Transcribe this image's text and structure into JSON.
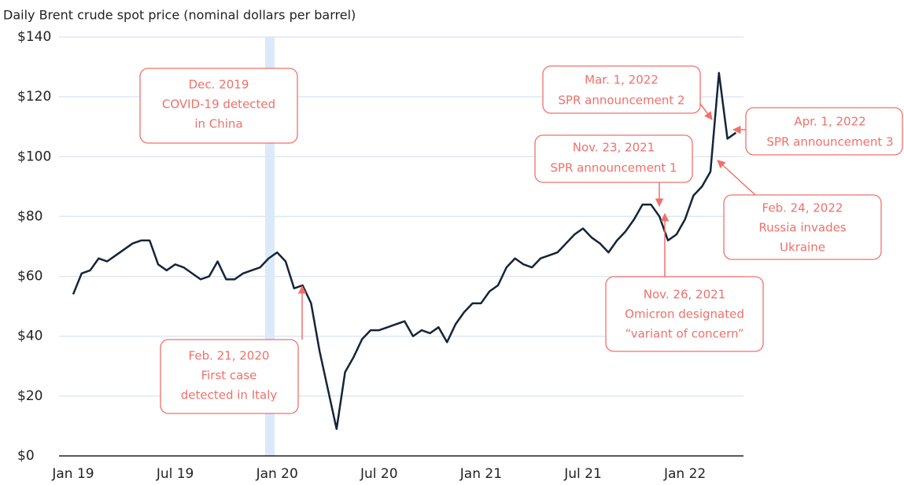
{
  "chart_data": {
    "type": "line",
    "title": "Daily Brent crude spot price (nominal dollars per barrel)",
    "categories": [
      "Jan 19",
      null,
      null,
      null,
      null,
      null,
      null,
      null,
      null,
      null,
      null,
      null,
      "Jul 19",
      null,
      null,
      null,
      null,
      null,
      null,
      null,
      null,
      null,
      null,
      null,
      "Jan 20",
      null,
      null,
      null,
      null,
      null,
      null,
      null,
      null,
      null,
      null,
      null,
      "Jul 20",
      null,
      null,
      null,
      null,
      null,
      null,
      null,
      null,
      null,
      null,
      null,
      "Jan 21",
      null,
      null,
      null,
      null,
      null,
      null,
      null,
      null,
      null,
      null,
      null,
      "Jul 21",
      null,
      null,
      null,
      null,
      null,
      null,
      null,
      null,
      null,
      null,
      null,
      "Jan 22",
      null,
      null,
      null,
      null,
      null,
      null
    ],
    "series": [
      {
        "name": "Brent",
        "color": "#14243a",
        "values": [
          54,
          61,
          62,
          66,
          65,
          67,
          69,
          71,
          72,
          72,
          64,
          62,
          64,
          63,
          61,
          59,
          60,
          65,
          59,
          59,
          61,
          62,
          63,
          66,
          68,
          65,
          56,
          57,
          51,
          35,
          22,
          9,
          28,
          33,
          39,
          42,
          42,
          43,
          44,
          45,
          40,
          42,
          41,
          43,
          38,
          44,
          48,
          51,
          51,
          55,
          57,
          63,
          66,
          64,
          63,
          66,
          67,
          68,
          71,
          74,
          76,
          73,
          71,
          68,
          72,
          75,
          79,
          84,
          84,
          80,
          72,
          74,
          79,
          87,
          90,
          95,
          128,
          106,
          108
        ]
      }
    ],
    "ylim": [
      0,
      140
    ],
    "yticks": [
      {
        "value": 0,
        "label": "$0"
      },
      {
        "value": 20,
        "label": "$20"
      },
      {
        "value": 40,
        "label": "$40"
      },
      {
        "value": 60,
        "label": "$60"
      },
      {
        "value": 80,
        "label": "$80"
      },
      {
        "value": 100,
        "label": "$100"
      },
      {
        "value": 120,
        "label": "$120"
      },
      {
        "value": 140,
        "label": "$140"
      }
    ],
    "grid": true,
    "annotations": [
      {
        "lines": [
          "Dec. 2019",
          "COVID-19 detected",
          "in China"
        ]
      },
      {
        "lines": [
          "Feb. 21, 2020",
          "First case",
          "detected in Italy"
        ]
      },
      {
        "lines": [
          "Mar. 1, 2022",
          "SPR announcement 2"
        ]
      },
      {
        "lines": [
          "Apr. 1, 2022",
          "SPR announcement 3"
        ]
      },
      {
        "lines": [
          "Nov. 23, 2021",
          "SPR announcement 1"
        ]
      },
      {
        "lines": [
          "Feb. 24, 2022",
          "Russia invades",
          "Ukraine"
        ]
      },
      {
        "lines": [
          "Nov. 26, 2021",
          "Omicron designated",
          "“variant of concern”"
        ]
      }
    ]
  }
}
